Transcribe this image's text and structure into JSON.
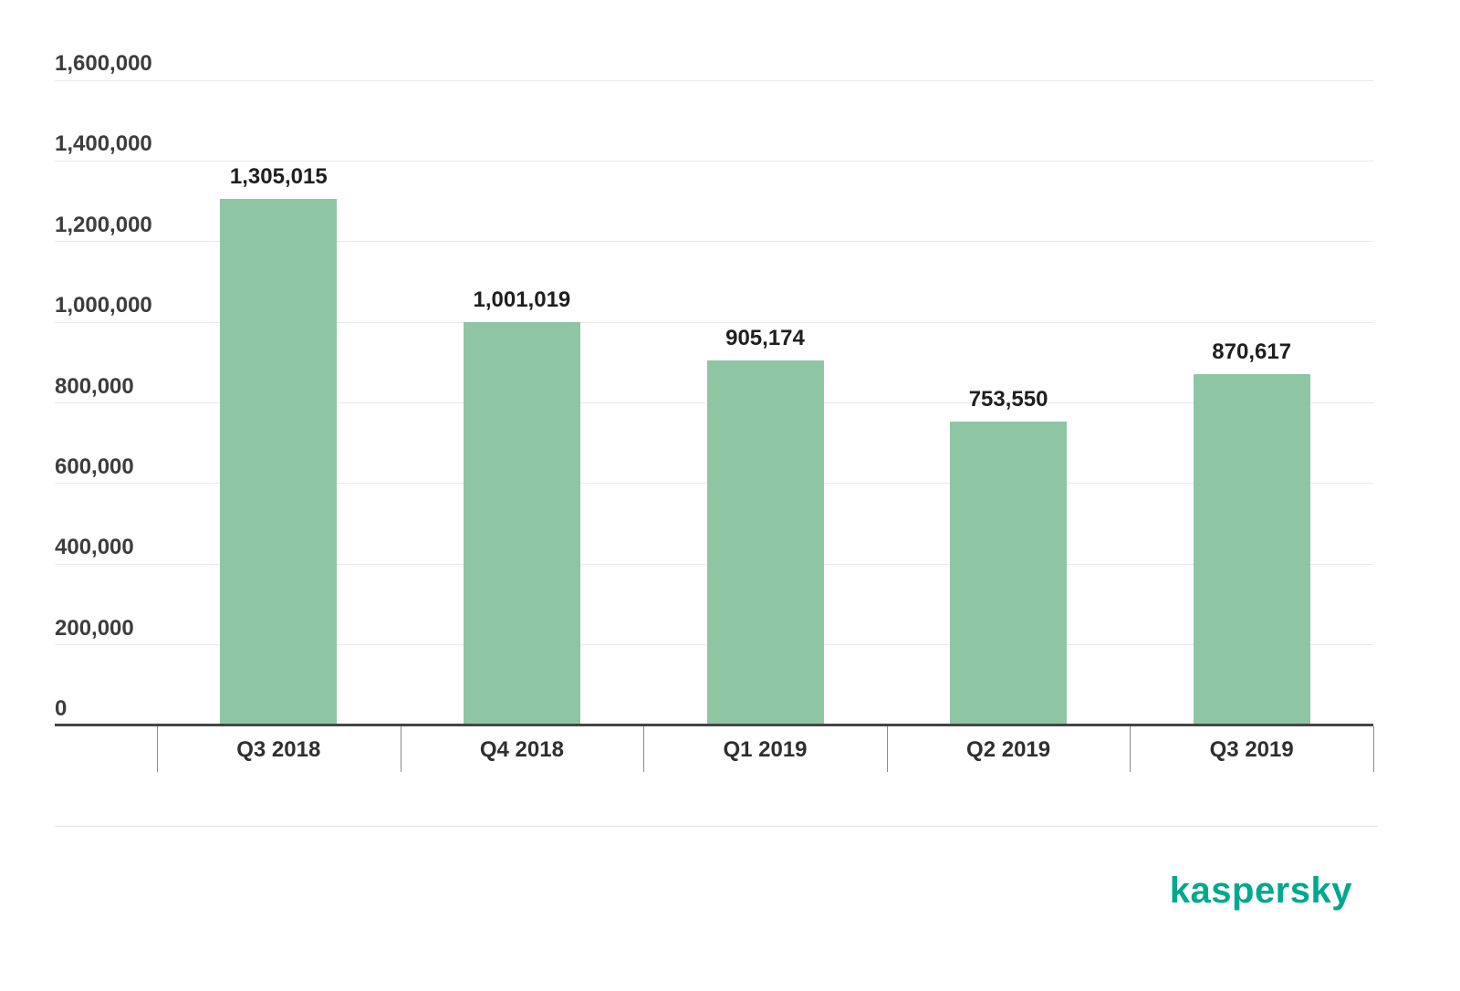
{
  "chart_data": {
    "type": "bar",
    "categories": [
      "Q3 2018",
      "Q4 2018",
      "Q1 2019",
      "Q2 2019",
      "Q3 2019"
    ],
    "values": [
      1305015,
      1001019,
      905174,
      753550,
      870617
    ],
    "value_labels": [
      "1,305,015",
      "1,001,019",
      "905,174",
      "753,550",
      "870,617"
    ],
    "title": "",
    "xlabel": "",
    "ylabel": "",
    "ylim": [
      0,
      1600000
    ],
    "ytick_step": 200000,
    "ytick_labels": [
      "0",
      "200,000",
      "400,000",
      "600,000",
      "800,000",
      "1,000,000",
      "1,200,000",
      "1,400,000",
      "1,600,000"
    ],
    "grid": true,
    "legend": "none",
    "bar_color": "#8ec6a4"
  },
  "branding": {
    "logo_text": "kaspersky",
    "logo_color": "#00a88e"
  },
  "colors": {
    "bar": "#8ec6a4",
    "gridline": "#e9e9e9",
    "axis_line": "#454545",
    "label_text": "#3d3d3d"
  }
}
